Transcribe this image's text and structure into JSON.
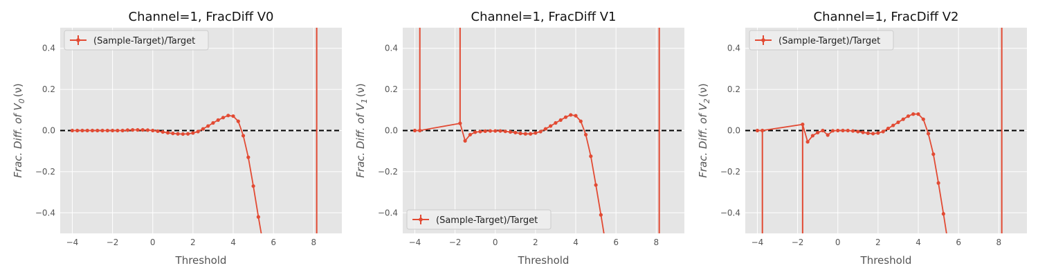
{
  "colors": {
    "series": "#E24A33",
    "panel_bg": "#E5E5E5",
    "grid": "#FFFFFF",
    "reference": "#000000"
  },
  "chart_data": [
    {
      "type": "line",
      "title": "Channel=1, FracDiff V0",
      "xlabel": "Threshold",
      "ylabel_prefix": "Frac. Diff. of V",
      "ylabel_sub": "0",
      "ylabel_suffix": "(ν)",
      "xlim": [
        -4.6,
        9.4
      ],
      "ylim": [
        -0.5,
        0.5
      ],
      "xticks": [
        -4,
        -2,
        0,
        2,
        4,
        6,
        8
      ],
      "yticks": [
        -0.4,
        -0.2,
        0.0,
        0.2,
        0.4
      ],
      "reference_line": 0,
      "legend_position": "upper left",
      "grid": true,
      "series": [
        {
          "name": "(Sample-Target)/Target",
          "x": [
            -4.0,
            -3.75,
            -3.5,
            -3.25,
            -3.0,
            -2.75,
            -2.5,
            -2.25,
            -2.0,
            -1.75,
            -1.5,
            -1.25,
            -1.0,
            -0.75,
            -0.5,
            -0.25,
            0.0,
            0.25,
            0.5,
            0.75,
            1.0,
            1.25,
            1.5,
            1.75,
            2.0,
            2.25,
            2.5,
            2.75,
            3.0,
            3.25,
            3.5,
            3.75,
            4.0,
            4.25,
            4.5,
            4.75,
            5.0,
            5.25,
            5.5
          ],
          "y": [
            0.0,
            0.0,
            0.0,
            0.0,
            0.0,
            0.0,
            0.0,
            0.0,
            0.0,
            0.0,
            0.0,
            0.002,
            0.003,
            0.003,
            0.003,
            0.002,
            0.0,
            -0.003,
            -0.007,
            -0.011,
            -0.014,
            -0.016,
            -0.017,
            -0.016,
            -0.012,
            -0.005,
            0.008,
            0.022,
            0.037,
            0.051,
            0.063,
            0.073,
            0.07,
            0.045,
            -0.025,
            -0.13,
            -0.27,
            -0.42,
            -0.56
          ],
          "error_bars": [
            {
              "x": 8.15,
              "low": -0.5,
              "high": 0.5
            }
          ]
        }
      ]
    },
    {
      "type": "line",
      "title": "Channel=1, FracDiff V1",
      "xlabel": "Threshold",
      "ylabel_prefix": "Frac. Diff. of V",
      "ylabel_sub": "1",
      "ylabel_suffix": "(ν)",
      "xlim": [
        -4.6,
        9.4
      ],
      "ylim": [
        -0.5,
        0.5
      ],
      "xticks": [
        -4,
        -2,
        0,
        2,
        4,
        6,
        8
      ],
      "yticks": [
        -0.4,
        -0.2,
        0.0,
        0.2,
        0.4
      ],
      "reference_line": 0,
      "legend_position": "lower left",
      "grid": true,
      "series": [
        {
          "name": "(Sample-Target)/Target",
          "x": [
            -4.0,
            -3.75,
            -1.75,
            -1.5,
            -1.25,
            -1.0,
            -0.75,
            -0.5,
            -0.25,
            0.0,
            0.25,
            0.5,
            0.75,
            1.0,
            1.25,
            1.5,
            1.75,
            2.0,
            2.25,
            2.5,
            2.75,
            3.0,
            3.25,
            3.5,
            3.75,
            4.0,
            4.25,
            4.5,
            4.75,
            5.0,
            5.25,
            5.5
          ],
          "y": [
            0.0,
            0.0,
            0.035,
            -0.05,
            -0.02,
            -0.008,
            -0.005,
            -0.003,
            -0.002,
            -0.002,
            -0.002,
            -0.004,
            -0.007,
            -0.01,
            -0.014,
            -0.016,
            -0.016,
            -0.012,
            -0.005,
            0.008,
            0.022,
            0.037,
            0.051,
            0.065,
            0.076,
            0.072,
            0.045,
            -0.02,
            -0.125,
            -0.265,
            -0.41,
            -0.56
          ],
          "error_bars": [
            {
              "x": -3.75,
              "low": 0.0,
              "high": 0.5
            },
            {
              "x": -1.75,
              "low": 0.035,
              "high": 0.5
            },
            {
              "x": 8.15,
              "low": -0.5,
              "high": 0.5
            }
          ]
        }
      ]
    },
    {
      "type": "line",
      "title": "Channel=1, FracDiff V2",
      "xlabel": "Threshold",
      "ylabel_prefix": "Frac. Diff. of V",
      "ylabel_sub": "2",
      "ylabel_suffix": "(ν)",
      "xlim": [
        -4.6,
        9.4
      ],
      "ylim": [
        -0.5,
        0.5
      ],
      "xticks": [
        -4,
        -2,
        0,
        2,
        4,
        6,
        8
      ],
      "yticks": [
        -0.4,
        -0.2,
        0.0,
        0.2,
        0.4
      ],
      "reference_line": 0,
      "legend_position": "upper left",
      "grid": true,
      "series": [
        {
          "name": "(Sample-Target)/Target",
          "x": [
            -4.0,
            -3.75,
            -1.75,
            -1.5,
            -1.25,
            -1.0,
            -0.75,
            -0.5,
            -0.25,
            0.0,
            0.25,
            0.5,
            0.75,
            1.0,
            1.25,
            1.5,
            1.75,
            2.0,
            2.25,
            2.5,
            2.75,
            3.0,
            3.25,
            3.5,
            3.75,
            4.0,
            4.25,
            4.5,
            4.75,
            5.0,
            5.25,
            5.5
          ],
          "y": [
            0.0,
            0.0,
            0.03,
            -0.055,
            -0.025,
            -0.01,
            0.0,
            -0.022,
            -0.001,
            0.0,
            0.0,
            0.0,
            -0.002,
            -0.005,
            -0.009,
            -0.013,
            -0.015,
            -0.012,
            -0.005,
            0.01,
            0.025,
            0.04,
            0.055,
            0.07,
            0.08,
            0.08,
            0.055,
            -0.015,
            -0.115,
            -0.255,
            -0.405,
            -0.56
          ],
          "error_bars": [
            {
              "x": -3.75,
              "low": -0.5,
              "high": 0.0
            },
            {
              "x": -1.75,
              "low": -0.5,
              "high": 0.03
            },
            {
              "x": 8.15,
              "low": -0.5,
              "high": 0.5
            }
          ]
        }
      ]
    }
  ]
}
